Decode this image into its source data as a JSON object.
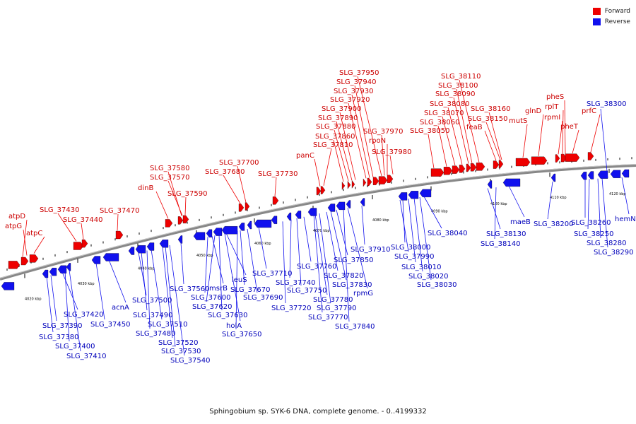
{
  "legend": {
    "forward_label": "Forward",
    "reverse_label": "Reverse",
    "forward_color": "#ee0000",
    "reverse_color": "#1111ee"
  },
  "caption": "Sphingobium sp. SYK-6 DNA, complete genome. - 0..4199332",
  "axis": {
    "tick_labels": [
      "4020 kbp",
      "4030 kbp",
      "4040 kbp",
      "4050 kbp",
      "4060 kbp",
      "4070 kbp",
      "4080 kbp",
      "4090 kbp",
      "4100 kbp",
      "4110 kbp",
      "4120 kbp"
    ]
  },
  "forward_labels": [
    "atpD",
    "atpG",
    "atpC",
    "SLG_37430",
    "SLG_37440",
    "SLG_37470",
    "dinB",
    "SLG_37580",
    "SLG_37570",
    "SLG_37590",
    "SLG_37680",
    "SLG_37700",
    "SLG_37730",
    "panC",
    "SLG_37810",
    "SLG_37860",
    "SLG_37880",
    "SLG_37890",
    "SLG_37900",
    "SLG_37920",
    "SLG_37930",
    "SLG_37940",
    "SLG_37950",
    "rpoN",
    "SLG_37970",
    "SLG_37980",
    "SLG_38050",
    "SLG_38060",
    "SLG_38070",
    "SLG_38080",
    "SLG_38090",
    "SLG_38100",
    "SLG_38110",
    "feaB",
    "SLG_38150",
    "SLG_38160",
    "mutS",
    "glnD",
    "rpmI",
    "rplT",
    "pheS",
    "pheT",
    "prfC"
  ],
  "reverse_labels": [
    "SLG_37390",
    "SLG_37380",
    "SLG_37400",
    "SLG_37410",
    "SLG_37420",
    "SLG_37450",
    "acnA",
    "SLG_37500",
    "SLG_37490",
    "SLG_37480",
    "SLG_37510",
    "SLG_37520",
    "SLG_37530",
    "SLG_37540",
    "SLG_37560",
    "SLG_37600",
    "msrB",
    "SLG_37620",
    "SLG_37630",
    "holA",
    "SLG_37650",
    "leuS",
    "SLG_37670",
    "SLG_37690",
    "SLG_37710",
    "SLG_37720",
    "SLG_37740",
    "SLG_37750",
    "SLG_37760",
    "SLG_37770",
    "SLG_37780",
    "SLG_37790",
    "SLG_37820",
    "SLG_37830",
    "SLG_37840",
    "rpmG",
    "SLG_37850",
    "SLG_37910",
    "SLG_37990",
    "SLG_38000",
    "SLG_38010",
    "SLG_38020",
    "SLG_38030",
    "SLG_38040",
    "SLG_38130",
    "SLG_38140",
    "maeB",
    "SLG_38200",
    "SLG_38250",
    "SLG_38260",
    "SLG_38280",
    "SLG_38290",
    "SLG_38300",
    "hemN"
  ]
}
